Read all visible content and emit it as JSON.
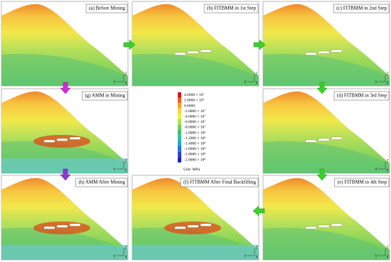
{
  "panels": [
    {
      "label": "(a) Before Mining"
    },
    {
      "label": "(b) FITBMM in 1st Step"
    },
    {
      "label": "(c) FITBMM in 2nd Step"
    },
    {
      "label": "(g) AMM in Mining"
    },
    {
      "label": "(d) FITBMM in 3rd  Step"
    },
    {
      "label": "(h) AMM After Mining"
    },
    {
      "label": "(f) FITBMM After Final Backfilling"
    },
    {
      "label": "(e) FITBMM in 4th Step"
    }
  ],
  "axis_labels": [
    "Z",
    "Y",
    "X"
  ],
  "legend": {
    "levels": [
      "4.0000 × 10⁷",
      "2.0000 × 10⁷",
      "0.0000",
      "-2.0000 × 10⁷",
      "-4.0000 × 10⁷",
      "-6.0000 × 10⁷",
      "-8.0000 × 10⁷",
      "-1.0000 × 10⁸",
      "-1.2000 × 10⁸",
      "-1.4000 × 10⁸",
      "-1.6000 × 10⁸",
      "-1.8000 × 10⁸",
      "-2.0000 × 10⁸"
    ],
    "unit": "Unit: MPa"
  }
}
